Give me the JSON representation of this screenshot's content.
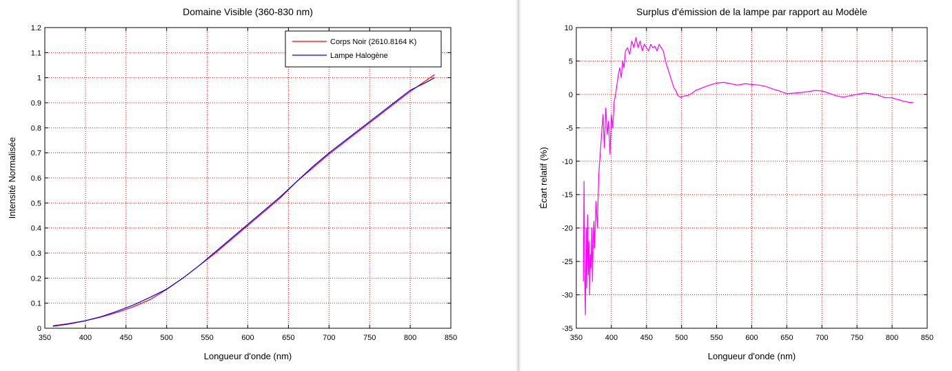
{
  "colors": {
    "grid": "#ff0000",
    "blackbody": "#ff0000",
    "lamp": "#0000ff",
    "surplus": "#ff00ff"
  },
  "chart_data": [
    {
      "type": "line",
      "title": "Domaine Visible (360-830 nm)",
      "xlabel": "Longueur d'onde (nm)",
      "ylabel": "Intensité Normalisée",
      "xlim": [
        350,
        850
      ],
      "ylim": [
        0,
        1.2
      ],
      "xticks": [
        350,
        400,
        450,
        500,
        550,
        600,
        650,
        700,
        750,
        800,
        850
      ],
      "yticks": [
        0,
        0.1,
        0.2,
        0.3,
        0.4,
        0.5,
        0.6,
        0.7,
        0.8,
        0.9,
        1,
        1.1,
        1.2
      ],
      "xtick_labels": [
        "350",
        "400",
        "450",
        "500",
        "550",
        "600",
        "650",
        "700",
        "750",
        "800",
        "850"
      ],
      "ytick_labels": [
        "0",
        "0.1",
        "0.2",
        "0.3",
        "0.4",
        "0.5",
        "0.6",
        "0.7",
        "0.8",
        "0.9",
        "1",
        "1.1",
        "1.2"
      ],
      "grid": true,
      "legend": "top-right",
      "series": [
        {
          "name": "Corps Noir (2610.8164 K)",
          "color": "#ff0000",
          "x": [
            360,
            380,
            400,
            420,
            440,
            460,
            480,
            500,
            520,
            540,
            560,
            580,
            600,
            620,
            640,
            660,
            680,
            700,
            720,
            740,
            760,
            780,
            800,
            820,
            830
          ],
          "y": [
            0.01,
            0.019,
            0.03,
            0.045,
            0.064,
            0.087,
            0.115,
            0.155,
            0.2,
            0.25,
            0.3,
            0.355,
            0.41,
            0.465,
            0.52,
            0.585,
            0.64,
            0.695,
            0.745,
            0.795,
            0.845,
            0.895,
            0.945,
            0.99,
            1.012
          ]
        },
        {
          "name": "Lampe Halogène",
          "color": "#0000ff",
          "x": [
            360,
            380,
            400,
            420,
            440,
            460,
            480,
            500,
            520,
            540,
            560,
            580,
            600,
            620,
            640,
            660,
            680,
            700,
            720,
            740,
            760,
            780,
            800,
            820,
            830
          ],
          "y": [
            0.008,
            0.017,
            0.03,
            0.047,
            0.069,
            0.094,
            0.124,
            0.156,
            0.2,
            0.25,
            0.305,
            0.36,
            0.415,
            0.47,
            0.525,
            0.585,
            0.645,
            0.7,
            0.75,
            0.8,
            0.85,
            0.9,
            0.95,
            0.982,
            1.0
          ]
        }
      ]
    },
    {
      "type": "line",
      "title": "Surplus d'émission de la lampe par rapport au Modèle",
      "xlabel": "Longueur d'onde (nm)",
      "ylabel": "Écart relatif (%)",
      "xlim": [
        350,
        850
      ],
      "ylim": [
        -35,
        10
      ],
      "xticks": [
        350,
        400,
        450,
        500,
        550,
        600,
        650,
        700,
        750,
        800,
        850
      ],
      "yticks": [
        -35,
        -30,
        -25,
        -20,
        -15,
        -10,
        -5,
        0,
        5,
        10
      ],
      "xtick_labels": [
        "350",
        "400",
        "450",
        "500",
        "550",
        "600",
        "650",
        "700",
        "750",
        "800",
        "850"
      ],
      "ytick_labels": [
        "-35",
        "-30",
        "-25",
        "-20",
        "-15",
        "-10",
        "-5",
        "0",
        "5",
        "10"
      ],
      "grid": true,
      "series": [
        {
          "name": "Écart relatif",
          "color": "#ff00ff",
          "x": [
            360,
            361,
            362,
            363,
            364,
            365,
            366,
            367,
            368,
            369,
            370,
            371,
            372,
            373,
            374,
            375,
            376,
            378,
            380,
            382,
            384,
            386,
            388,
            390,
            392,
            394,
            396,
            398,
            400,
            402,
            404,
            406,
            408,
            410,
            412,
            414,
            416,
            418,
            420,
            423,
            426,
            429,
            432,
            435,
            438,
            441,
            444,
            447,
            450,
            453,
            456,
            459,
            462,
            465,
            468,
            471,
            474,
            477,
            480,
            483,
            486,
            489,
            492,
            495,
            498,
            502,
            506,
            510,
            515,
            520,
            530,
            540,
            550,
            560,
            570,
            580,
            590,
            600,
            610,
            620,
            630,
            640,
            650,
            660,
            670,
            680,
            690,
            700,
            710,
            720,
            730,
            740,
            750,
            760,
            770,
            780,
            790,
            800,
            805,
            810,
            815,
            820,
            825,
            830
          ],
          "y": [
            -28,
            -13,
            -27,
            -33,
            -20,
            -29,
            -18,
            -27,
            -22,
            -30,
            -24,
            -26,
            -20,
            -28,
            -22,
            -19,
            -23,
            -16,
            -20,
            -12,
            -9,
            -6,
            -3,
            -8,
            -2,
            -6,
            -4,
            -9,
            -3,
            -5,
            -1,
            0,
            1.5,
            3,
            4,
            2.5,
            5,
            4,
            6.5,
            7,
            6,
            8,
            7,
            8.5,
            7,
            8,
            6.5,
            7.5,
            7,
            6.5,
            7.5,
            7,
            7.2,
            6.5,
            7.5,
            7,
            6.5,
            5,
            4,
            3,
            2,
            1,
            0.5,
            -0.2,
            -0.4,
            -0.3,
            -0.2,
            -0.1,
            0.2,
            0.6,
            1,
            1.4,
            1.7,
            1.8,
            1.6,
            1.4,
            1.6,
            1.5,
            1.4,
            1.2,
            0.8,
            0.5,
            0.1,
            0.2,
            0.3,
            0.4,
            0.6,
            0.5,
            0.2,
            -0.2,
            -0.4,
            -0.2,
            0,
            0.2,
            0.1,
            -0.1,
            -0.5,
            -0.5,
            -0.7,
            -0.8,
            -1.0,
            -1.1,
            -1.2,
            -1.2
          ]
        }
      ]
    }
  ]
}
